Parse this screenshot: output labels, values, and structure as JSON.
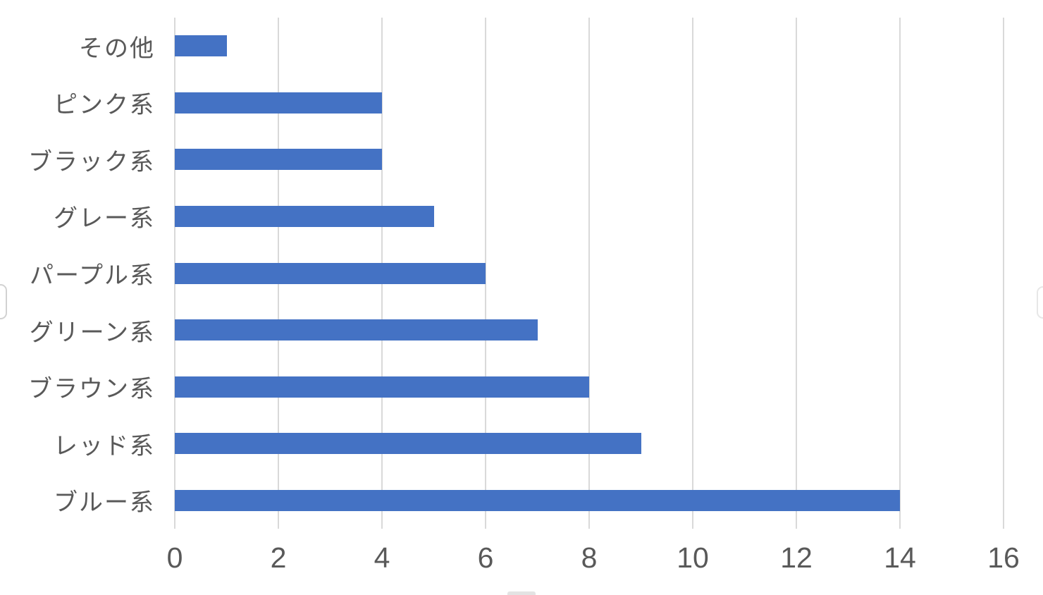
{
  "chart_data": {
    "type": "bar",
    "orientation": "horizontal",
    "title": "",
    "xlabel": "",
    "ylabel": "",
    "categories": [
      "その他",
      "ピンク系",
      "ブラック系",
      "グレー系",
      "パープル系",
      "グリーン系",
      "ブラウン系",
      "レッド系",
      "ブルー系"
    ],
    "values": [
      1,
      4,
      4,
      5,
      6,
      7,
      8,
      9,
      14
    ],
    "xlim": [
      0,
      16
    ],
    "xticks": [
      0,
      2,
      4,
      6,
      8,
      10,
      12,
      14,
      16
    ],
    "grid": "vertical-only",
    "legend_position": "none",
    "colors": {
      "bar": "#4472C4",
      "gridline": "#D9D9D9",
      "axis_text": "#595959",
      "background": "#FFFFFF"
    }
  }
}
